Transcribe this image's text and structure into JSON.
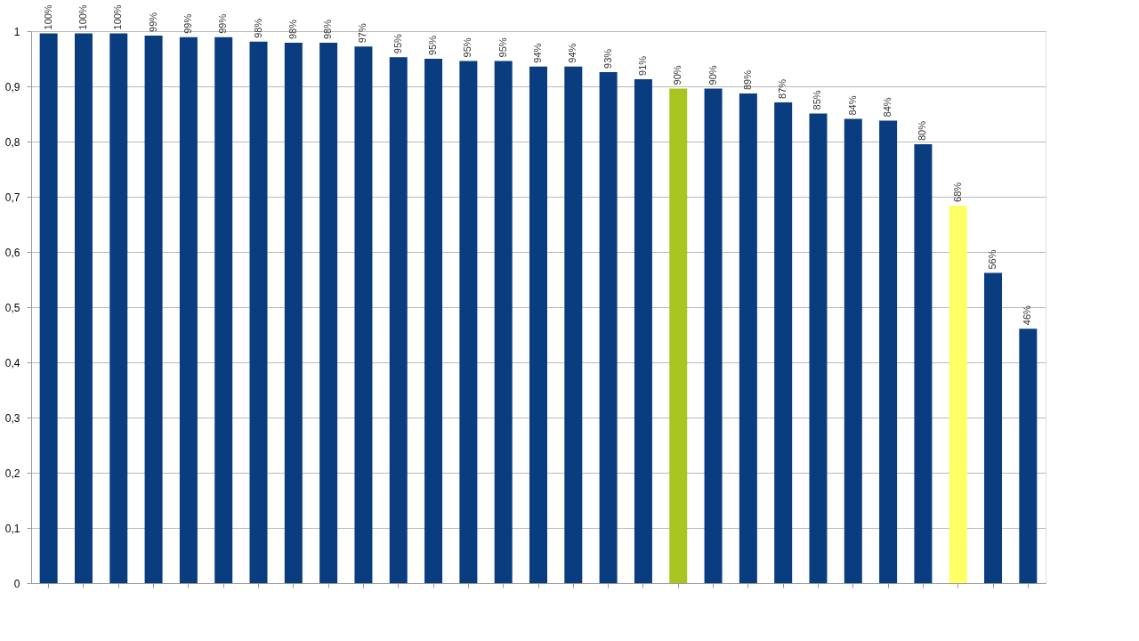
{
  "chart_data": {
    "type": "bar",
    "categories": [
      null,
      null,
      null,
      null,
      null,
      null,
      null,
      null,
      null,
      null,
      null,
      null,
      null,
      null,
      null,
      null,
      null,
      null,
      null,
      null,
      null,
      null,
      null,
      null,
      null,
      null,
      null,
      null,
      null
    ],
    "values": [
      0.996,
      0.996,
      0.996,
      0.992,
      0.989,
      0.989,
      0.981,
      0.979,
      0.979,
      0.972,
      0.953,
      0.95,
      0.946,
      0.946,
      0.936,
      0.936,
      0.926,
      0.913,
      0.896,
      0.896,
      0.887,
      0.871,
      0.851,
      0.841,
      0.838,
      0.795,
      0.684,
      0.562,
      0.461
    ],
    "colors": [
      "#0a3d80",
      "#0a3d80",
      "#0a3d80",
      "#0a3d80",
      "#0a3d80",
      "#0a3d80",
      "#0a3d80",
      "#0a3d80",
      "#0a3d80",
      "#0a3d80",
      "#0a3d80",
      "#0a3d80",
      "#0a3d80",
      "#0a3d80",
      "#0a3d80",
      "#0a3d80",
      "#0a3d80",
      "#0a3d80",
      "#a8c520",
      "#0a3d80",
      "#0a3d80",
      "#0a3d80",
      "#0a3d80",
      "#0a3d80",
      "#0a3d80",
      "#0a3d80",
      "#ffff66",
      "#0a3d80",
      "#0a3d80"
    ],
    "value_labels": [
      "100%",
      "100%",
      "100%",
      "99%",
      "99%",
      "99%",
      "98%",
      "98%",
      "98%",
      "97%",
      "95%",
      "95%",
      "95%",
      "95%",
      "94%",
      "94%",
      "93%",
      "91%",
      "90%",
      "90%",
      "89%",
      "87%",
      "85%",
      "84%",
      "84%",
      "80%",
      "68%",
      "56%",
      "46%"
    ],
    "ylim": [
      0,
      1
    ],
    "yticks": [
      0,
      {
        "value": 0.1,
        "label": "0,1"
      },
      {
        "value": 0.2,
        "label": "0,2"
      },
      {
        "value": 0.3,
        "label": "0,3"
      },
      {
        "value": 0.4,
        "label": "0,4"
      },
      {
        "value": 0.5,
        "label": "0,5"
      },
      {
        "value": 0.6,
        "label": "0,6"
      },
      {
        "value": 0.7,
        "label": "0,7"
      },
      {
        "value": 0.8,
        "label": "0,8"
      },
      {
        "value": 0.9,
        "label": "0,9"
      },
      1
    ],
    "grid": "y"
  }
}
